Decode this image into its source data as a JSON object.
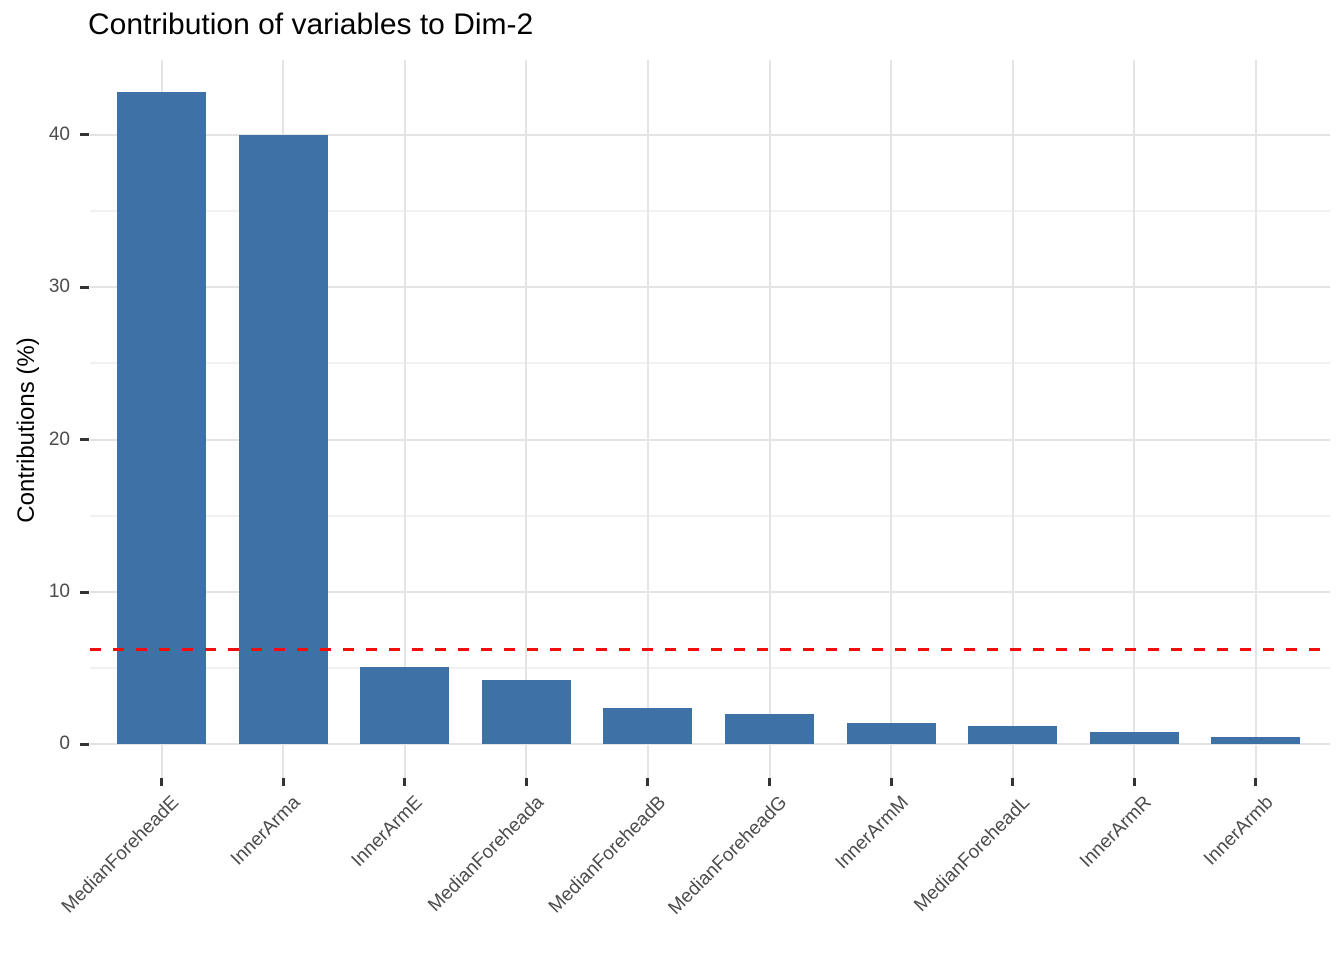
{
  "chart_data": {
    "type": "bar",
    "title": "Contribution of variables to Dim-2",
    "xlabel": "",
    "ylabel": "Contributions (%)",
    "categories": [
      "MedianForeheadE",
      "InnerArma",
      "InnerArmE",
      "MedianForeheada",
      "MedianForeheadB",
      "MedianForeheadG",
      "InnerArmM",
      "MedianForeheadL",
      "InnerArmR",
      "InnerArmb"
    ],
    "values": [
      42.8,
      40.0,
      5.1,
      4.2,
      2.4,
      2.0,
      1.4,
      1.2,
      0.8,
      0.5
    ],
    "y_ticks": [
      0,
      10,
      20,
      30,
      40
    ],
    "y_minor_gridlines": [
      5,
      15,
      25,
      35
    ],
    "ylim": [
      -2.2,
      44.9
    ],
    "grid": "on",
    "legend": "none",
    "reference_line": {
      "value": 6.25,
      "style": "dashed",
      "color": "#f20d0d"
    },
    "colors": {
      "bar_fill": "#3e71a6",
      "reference_line": "#f20d0d",
      "gridline_major": "#e4e4e4",
      "gridline_minor": "#f1f1f1",
      "axis_text": "#4d4d4d",
      "axis_tick": "#333333",
      "title_text": "#000000",
      "background": "#ffffff"
    }
  }
}
